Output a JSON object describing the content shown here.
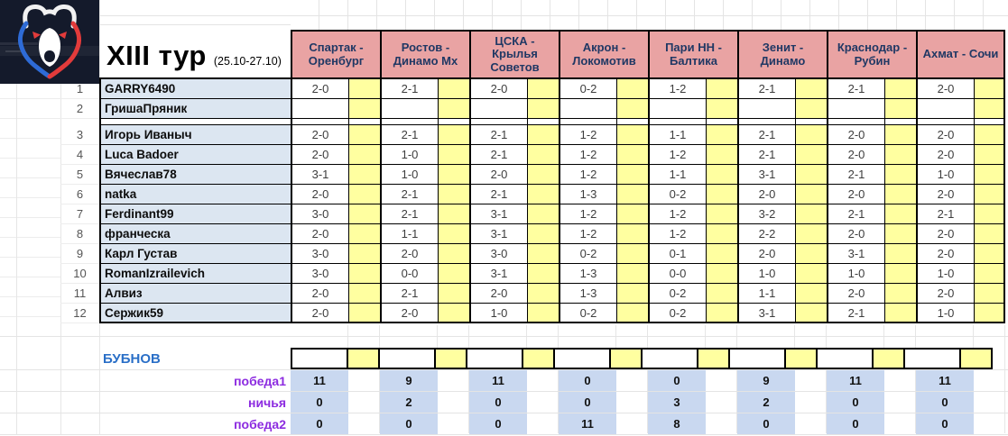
{
  "title": {
    "round": "XIII тур",
    "dates": "(25.10-27.10)"
  },
  "logo": {
    "icon": "rpl-bear-logo"
  },
  "matches": [
    "Спартак - Оренбург",
    "Ростов - Динамо Мх",
    "ЦСКА - Крылья Советов",
    "Акрон - Локомотив",
    "Пари НН - Балтика",
    "Зенит - Динамо",
    "Краснодар - Рубин",
    "Ахмат - Сочи"
  ],
  "players": [
    {
      "num": "1",
      "name": "GARRY6490",
      "predictions": [
        "2-0",
        "2-1",
        "2-0",
        "0-2",
        "1-2",
        "2-1",
        "2-1",
        "2-0"
      ]
    },
    {
      "num": "2",
      "name": "ГришаПряник",
      "predictions": [
        "",
        "",
        "",
        "",
        "",
        "",
        "",
        ""
      ]
    },
    {
      "num": "3",
      "name": "Игорь Иваныч",
      "predictions": [
        "2-0",
        "2-1",
        "2-1",
        "1-2",
        "1-1",
        "2-1",
        "2-0",
        "2-0"
      ]
    },
    {
      "num": "4",
      "name": "Luca Badoer",
      "predictions": [
        "2-0",
        "1-0",
        "2-1",
        "1-2",
        "1-2",
        "2-1",
        "2-0",
        "2-0"
      ]
    },
    {
      "num": "5",
      "name": "Вячеслав78",
      "predictions": [
        "3-1",
        "1-0",
        "2-0",
        "1-2",
        "1-1",
        "3-1",
        "2-1",
        "1-0"
      ]
    },
    {
      "num": "6",
      "name": "natka",
      "predictions": [
        "2-0",
        "2-1",
        "2-1",
        "1-3",
        "0-2",
        "2-0",
        "2-0",
        "2-0"
      ]
    },
    {
      "num": "7",
      "name": "Ferdinant99",
      "predictions": [
        "3-0",
        "2-1",
        "3-1",
        "1-2",
        "1-2",
        "3-2",
        "2-1",
        "2-1"
      ]
    },
    {
      "num": "8",
      "name": "франческа",
      "predictions": [
        "2-0",
        "1-1",
        "3-1",
        "1-2",
        "1-2",
        "2-2",
        "2-0",
        "2-0"
      ]
    },
    {
      "num": "9",
      "name": "Карл Густав",
      "predictions": [
        "3-0",
        "2-0",
        "3-0",
        "0-2",
        "0-1",
        "2-0",
        "3-1",
        "2-0"
      ]
    },
    {
      "num": "10",
      "name": "RomanIzrailevich",
      "predictions": [
        "3-0",
        "0-0",
        "3-1",
        "1-3",
        "0-0",
        "1-0",
        "1-0",
        "1-0"
      ]
    },
    {
      "num": "11",
      "name": "Алвиз",
      "predictions": [
        "2-0",
        "2-1",
        "2-0",
        "1-3",
        "0-2",
        "1-1",
        "2-0",
        "2-0"
      ]
    },
    {
      "num": "12",
      "name": "Сержик59",
      "predictions": [
        "2-0",
        "2-0",
        "1-0",
        "0-2",
        "0-2",
        "3-1",
        "2-1",
        "1-0"
      ]
    }
  ],
  "bubnov_label": "БУБНОВ",
  "stats": [
    {
      "label": "победа1",
      "values": [
        11,
        9,
        11,
        0,
        0,
        9,
        11,
        11
      ]
    },
    {
      "label": "ничья",
      "values": [
        0,
        2,
        0,
        0,
        3,
        2,
        0,
        0
      ]
    },
    {
      "label": "победа2",
      "values": [
        0,
        0,
        0,
        11,
        8,
        0,
        0,
        0
      ]
    }
  ],
  "colors": {
    "header_bg": "#E9A3A3",
    "header_text": "#203864",
    "points_bg": "#FFFFA0",
    "name_bg": "#DCE6F1",
    "stats_value_bg": "#C9D8F0",
    "bubnov_text": "#2A6FC7",
    "stat_label_text": "#8C2BE0",
    "logo_blue": "#2E6BD6",
    "logo_red": "#E23B3B"
  }
}
